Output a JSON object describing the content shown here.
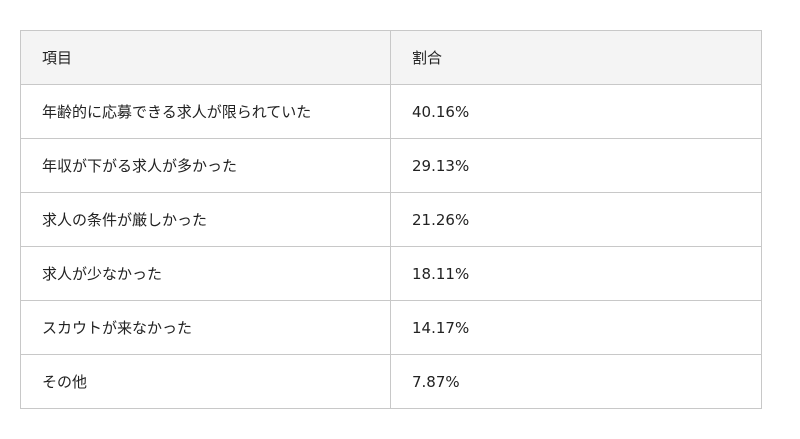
{
  "table": {
    "header": [
      "項目",
      "割合"
    ],
    "rows": [
      [
        "年齢的に応募できる求人が限られていた",
        "40.16%"
      ],
      [
        "年収が下がる求人が多かった",
        "29.13%"
      ],
      [
        "求人の条件が厳しかった",
        "21.26%"
      ],
      [
        "求人が少なかった",
        "18.11%"
      ],
      [
        "スカウトが来なかった",
        "14.17%"
      ],
      [
        "その他",
        "7.87%"
      ]
    ]
  }
}
